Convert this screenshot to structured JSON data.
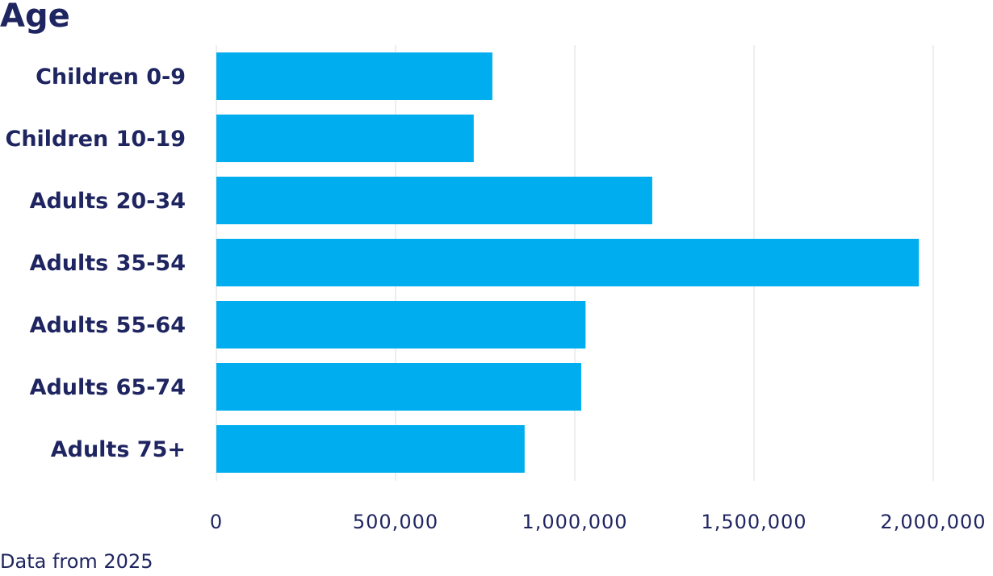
{
  "chart_data": {
    "type": "bar",
    "orientation": "horizontal",
    "title": "Age",
    "categories": [
      "Children 0-9",
      "Children 10-19",
      "Adults 20-34",
      "Adults 35-54",
      "Adults 55-64",
      "Adults 65-74",
      "Adults 75+"
    ],
    "values": [
      770000,
      718000,
      1216000,
      1960000,
      1030000,
      1018000,
      860000
    ],
    "color": "#00aeef",
    "xlim": [
      0,
      2000000
    ],
    "xticks": [
      0,
      {
        "value": 500000,
        "label": "500,000"
      },
      {
        "value": 1000000,
        "label": "1,000,000"
      },
      {
        "value": 1500000,
        "label": "1,500,000"
      },
      {
        "value": 2000000,
        "label": "2,000,000"
      }
    ],
    "grid": true,
    "note": "Data from 2025"
  }
}
